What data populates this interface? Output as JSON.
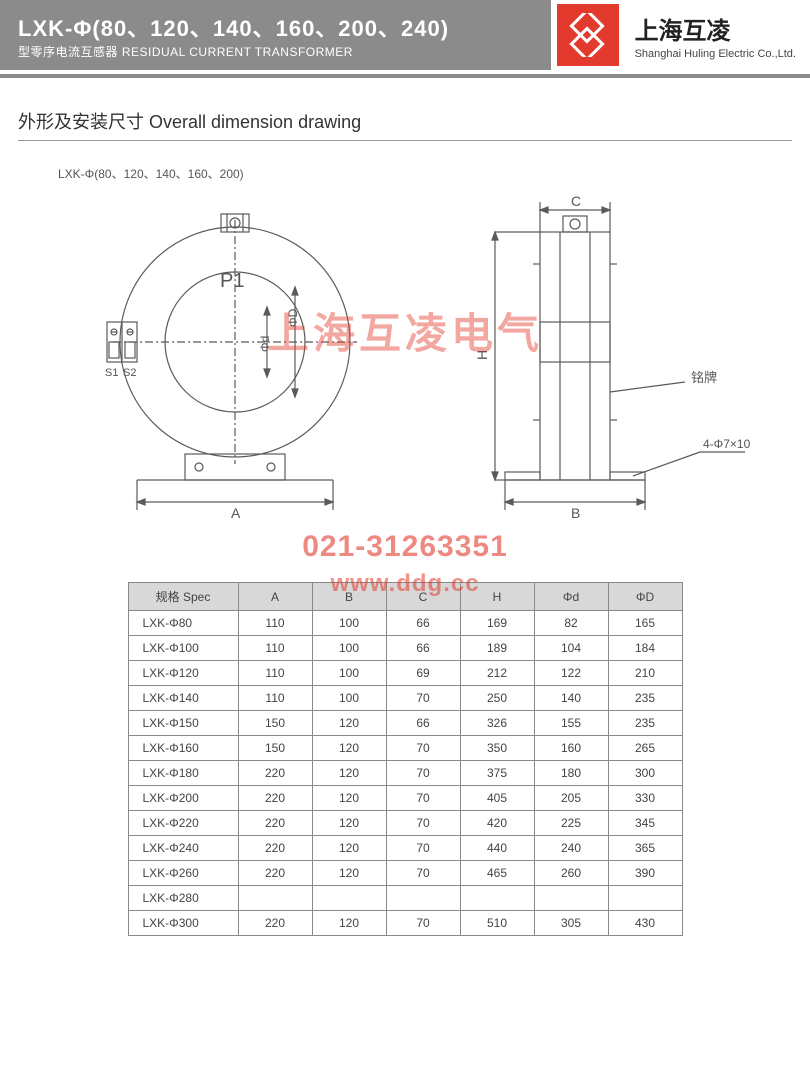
{
  "header": {
    "title": "LXK-Φ(80、120、140、160、200、240)",
    "subtitle": "型零序电流互感器 RESIDUAL CURRENT TRANSFORMER",
    "brand_cn": "上海互凌",
    "brand_en": "Shanghai Huling Electric Co.,Ltd."
  },
  "section": {
    "title": "外形及安装尺寸  Overall dimension drawing",
    "diagram_label": "LXK-Φ(80、120、140、160、200)"
  },
  "diagram": {
    "stroke": "#5a5a5a",
    "stroke_w": 1.2,
    "labels": {
      "p1": "P1",
      "s1": "S1",
      "s2": "S2",
      "phi_d_small": "Φd",
      "phi_d_big": "ΦD",
      "A": "A",
      "B": "B",
      "C": "C",
      "H": "H",
      "nameplate": "铭牌",
      "holes": "4-Φ7×10"
    }
  },
  "watermarks": {
    "cn": "上海互凌电气",
    "phone": "021-31263351",
    "url": "www.ddg.cc"
  },
  "table": {
    "columns": [
      "规格 Spec",
      "A",
      "B",
      "C",
      "H",
      "Φd",
      "ΦD"
    ],
    "rows": [
      [
        "LXK-Φ80",
        "110",
        "100",
        "66",
        "169",
        "82",
        "165"
      ],
      [
        "LXK-Φ100",
        "110",
        "100",
        "66",
        "189",
        "104",
        "184"
      ],
      [
        "LXK-Φ120",
        "110",
        "100",
        "69",
        "212",
        "122",
        "210"
      ],
      [
        "LXK-Φ140",
        "110",
        "100",
        "70",
        "250",
        "140",
        "235"
      ],
      [
        "LXK-Φ150",
        "150",
        "120",
        "66",
        "326",
        "155",
        "235"
      ],
      [
        "LXK-Φ160",
        "150",
        "120",
        "70",
        "350",
        "160",
        "265"
      ],
      [
        "LXK-Φ180",
        "220",
        "120",
        "70",
        "375",
        "180",
        "300"
      ],
      [
        "LXK-Φ200",
        "220",
        "120",
        "70",
        "405",
        "205",
        "330"
      ],
      [
        "LXK-Φ220",
        "220",
        "120",
        "70",
        "420",
        "225",
        "345"
      ],
      [
        "LXK-Φ240",
        "220",
        "120",
        "70",
        "440",
        "240",
        "365"
      ],
      [
        "LXK-Φ260",
        "220",
        "120",
        "70",
        "465",
        "260",
        "390"
      ],
      [
        "LXK-Φ280",
        "",
        "",
        "",
        "",
        "",
        ""
      ],
      [
        "LXK-Φ300",
        "220",
        "120",
        "70",
        "510",
        "305",
        "430"
      ]
    ]
  }
}
